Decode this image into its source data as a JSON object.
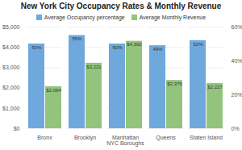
{
  "chart_data": {
    "type": "bar",
    "title": "New York City Occupancy Rates & Monthly Revenue",
    "xlabel": "NYC Boroughs",
    "categories": [
      "Bronx",
      "Brooklyn",
      "Manhattan",
      "Queens",
      "Staten Island"
    ],
    "series": [
      {
        "name": "Average Occupancy percentage",
        "color": "#6fa8dc",
        "axis": "y2",
        "values": [
          50,
          55,
          50,
          49,
          52
        ],
        "value_labels": [
          "50%",
          "55%",
          "50%",
          "49%",
          "52%"
        ]
      },
      {
        "name": "Average Monthly Revenue",
        "color": "#93c47d",
        "values": [
          2064,
          3221,
          4302,
          2375,
          2227
        ],
        "value_labels": [
          "$2,064",
          "$3,221",
          "$4,302",
          "$2,375",
          "$2,227"
        ]
      }
    ],
    "ylim": [
      0,
      5000
    ],
    "yticks": [
      {
        "value": 0,
        "label": "$0"
      },
      {
        "value": 1000,
        "label": "$1,000"
      },
      {
        "value": 2000,
        "label": "$2,000"
      },
      {
        "value": 3000,
        "label": "$3,000"
      },
      {
        "value": 4000,
        "label": "$4,000"
      },
      {
        "value": 5000,
        "label": "$5,000"
      }
    ],
    "y2lim": [
      0,
      60
    ],
    "y2ticks": [
      {
        "value": 0,
        "label": "0%"
      },
      {
        "value": 20,
        "label": "20%"
      },
      {
        "value": 40,
        "label": "40%"
      },
      {
        "value": 60,
        "label": "60%"
      }
    ],
    "grid": true,
    "legend": "top",
    "data_labels": true
  }
}
